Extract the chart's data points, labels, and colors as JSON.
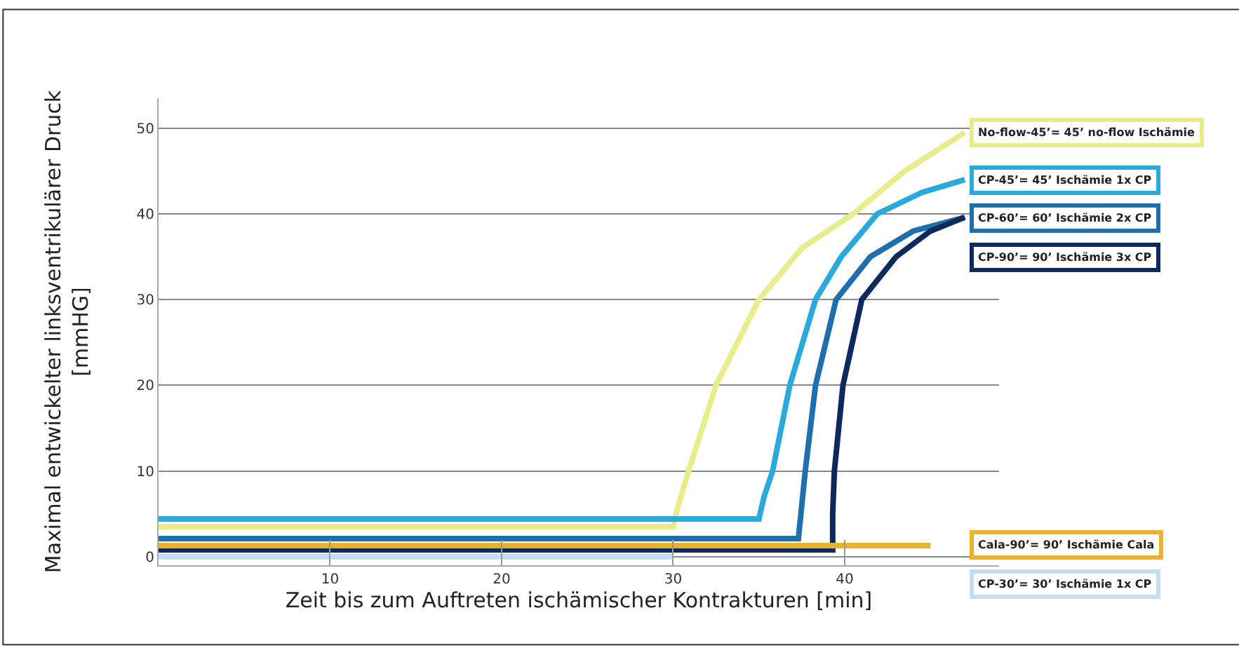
{
  "chart_data": {
    "type": "line",
    "xlabel": "Zeit bis zum Auftreten ischämischer Kontrakturen [min]",
    "ylabel": "Maximal entwickelter linksventrikulärer Druck\n[mmHG]",
    "xlim": [
      0,
      49
    ],
    "xticks": [
      10,
      20,
      30,
      40
    ],
    "ylim": [
      -1,
      53.5
    ],
    "yticks": [
      0,
      10,
      20,
      30,
      40,
      50
    ],
    "grid": "y",
    "legend": "right",
    "marker": "none",
    "line_style": "solid",
    "series": [
      {
        "name": "No-flow-45’= 45’ no-flow Ischämie",
        "color": "#e8ec8a",
        "x": [
          0,
          30,
          30.3,
          30.9,
          32.5,
          35,
          37.5,
          40.5,
          43.5,
          47
        ],
        "values": [
          3.5,
          3.5,
          6,
          10,
          20,
          30,
          36,
          40,
          45,
          49.5
        ]
      },
      {
        "name": "CP-45’= 45’ Ischämie 1x CP",
        "color": "#29a9dc",
        "x": [
          0,
          35,
          35.3,
          35.8,
          36.8,
          38.3,
          39.8,
          41.9,
          44.5,
          47
        ],
        "values": [
          4.4,
          4.4,
          7,
          10,
          20,
          30,
          35,
          40,
          42.5,
          44
        ]
      },
      {
        "name": "CP-60’= 60’ Ischämie 2x CP",
        "color": "#1e6fae",
        "x": [
          0,
          37.3,
          37.5,
          37.7,
          38.3,
          39.5,
          41.5,
          44,
          47
        ],
        "values": [
          2.1,
          2.1,
          6,
          10,
          20,
          30,
          35,
          38,
          39.6
        ]
      },
      {
        "name": "CP-90’= 90’ Ischämie 3x CP",
        "color": "#0d2a5c",
        "x": [
          0,
          39.3,
          39.3,
          39.4,
          39.9,
          41,
          43,
          45,
          47
        ],
        "values": [
          0.8,
          0.8,
          5,
          10,
          20,
          30,
          35,
          38,
          39.6
        ]
      },
      {
        "name": "Cala-90’= 90’ Ischämie Cala",
        "color": "#e8b22a",
        "x": [
          0,
          45
        ],
        "values": [
          1.3,
          1.3
        ]
      },
      {
        "name": "CP-30’= 30’ Ischämie 1x CP",
        "color": "#c5ddef",
        "x": [
          0,
          30
        ],
        "values": [
          0,
          0
        ]
      }
    ]
  }
}
